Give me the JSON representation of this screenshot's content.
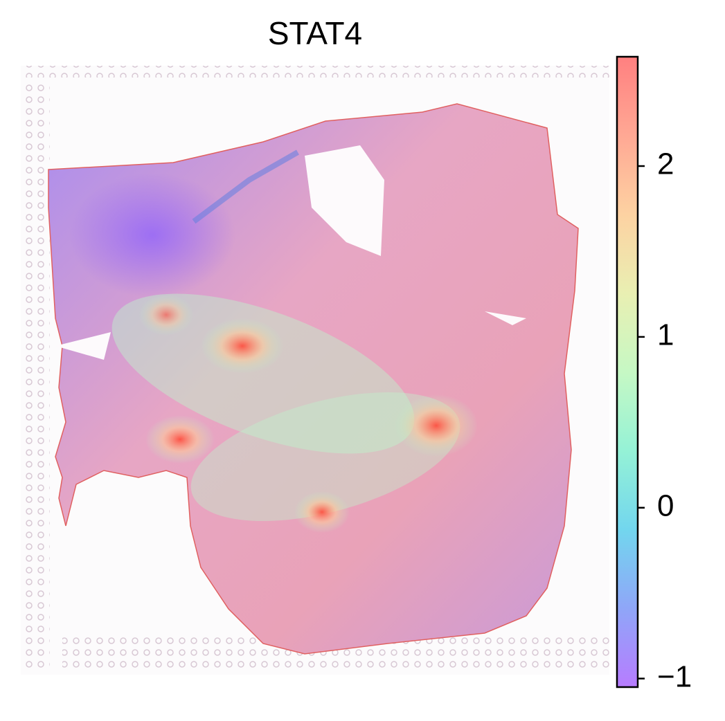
{
  "chart_data": {
    "type": "spatial",
    "title": "STAT4",
    "colorbar": {
      "ylim": [
        -1.05,
        2.64
      ],
      "yticks": [
        {
          "value": -1,
          "label": "−1"
        },
        0,
        1,
        2
      ],
      "colormap": [
        "#b77cff",
        "#8fa6f8",
        "#72d6ee",
        "#95f2d6",
        "#c6f8c4",
        "#e9efb2",
        "#fdd2a2",
        "#ffa894",
        "#ff8080"
      ]
    }
  }
}
